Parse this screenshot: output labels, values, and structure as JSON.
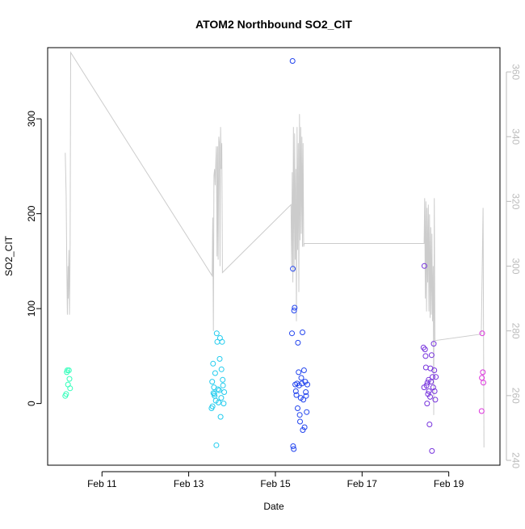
{
  "chart_data": {
    "type": "scatter",
    "title": "ATOM2 Northbound SO2_CIT",
    "xlabel": "Date",
    "ylabel": "SO2_CIT",
    "x_ticks": [
      {
        "date": "2017-02-11",
        "label": "Feb 11"
      },
      {
        "date": "2017-02-13",
        "label": "Feb 13"
      },
      {
        "date": "2017-02-15",
        "label": "Feb 15"
      },
      {
        "date": "2017-02-17",
        "label": "Feb 17"
      },
      {
        "date": "2017-02-19",
        "label": "Feb 19"
      }
    ],
    "xlim": [
      "2017-02-09 17:55",
      "2017-02-20 04:20"
    ],
    "ylim": [
      -65,
      375
    ],
    "y_ticks": [
      0,
      100,
      200,
      300
    ],
    "y2_ticks": [
      240,
      260,
      280,
      300,
      320,
      340,
      360
    ],
    "y2lim": [
      238.5,
      367.5
    ],
    "grid": false,
    "legend": "none",
    "colors": {
      "points_feb10": "#33ffbb",
      "points_feb13": "#22ccee",
      "points_feb15": "#2244ee",
      "points_feb18": "#7733dd",
      "points_feb19": "#dd33dd",
      "line": "#cccccc",
      "axis": "#000000",
      "secondary_axis": "#bbbbbb"
    },
    "series": [
      {
        "color": "#33ffbb",
        "points": [
          [
            "2017-02-10 03:40",
            8
          ],
          [
            "2017-02-10 04:10",
            10
          ],
          [
            "2017-02-10 04:30",
            33
          ],
          [
            "2017-02-10 05:10",
            20
          ],
          [
            "2017-02-10 05:40",
            35
          ],
          [
            "2017-02-10 06:00",
            26
          ],
          [
            "2017-02-10 06:20",
            16
          ],
          [
            "2017-02-10 04:50",
            35
          ]
        ]
      },
      {
        "color": "#22ccee",
        "points": [
          [
            "2017-02-13 12:40",
            -5
          ],
          [
            "2017-02-13 13:00",
            23
          ],
          [
            "2017-02-13 13:10",
            -3
          ],
          [
            "2017-02-13 13:30",
            42
          ],
          [
            "2017-02-13 13:40",
            11
          ],
          [
            "2017-02-13 14:00",
            17
          ],
          [
            "2017-02-13 14:20",
            8
          ],
          [
            "2017-02-13 14:40",
            32
          ],
          [
            "2017-02-13 15:00",
            3
          ],
          [
            "2017-02-13 15:20",
            -44
          ],
          [
            "2017-02-13 15:30",
            74
          ],
          [
            "2017-02-13 15:50",
            65
          ],
          [
            "2017-02-13 16:10",
            15
          ],
          [
            "2017-02-13 16:30",
            1
          ],
          [
            "2017-02-13 16:50",
            14
          ],
          [
            "2017-02-13 17:10",
            47
          ],
          [
            "2017-02-13 17:20",
            69
          ],
          [
            "2017-02-13 17:40",
            -14
          ],
          [
            "2017-02-13 18:00",
            6
          ],
          [
            "2017-02-13 18:10",
            36
          ],
          [
            "2017-02-13 18:30",
            65
          ],
          [
            "2017-02-13 18:50",
            25
          ],
          [
            "2017-02-13 19:00",
            19
          ],
          [
            "2017-02-13 19:20",
            0
          ],
          [
            "2017-02-13 19:40",
            12
          ],
          [
            "2017-02-13 14:10",
            10
          ]
        ]
      },
      {
        "color": "#2244ee",
        "points": [
          [
            "2017-02-15 09:10",
            74
          ],
          [
            "2017-02-15 09:30",
            361
          ],
          [
            "2017-02-15 09:40",
            142
          ],
          [
            "2017-02-15 09:50",
            -45
          ],
          [
            "2017-02-15 10:10",
            -48
          ],
          [
            "2017-02-15 10:20",
            98
          ],
          [
            "2017-02-15 10:40",
            101
          ],
          [
            "2017-02-15 11:00",
            20
          ],
          [
            "2017-02-15 11:20",
            13
          ],
          [
            "2017-02-15 11:40",
            9
          ],
          [
            "2017-02-15 12:00",
            21
          ],
          [
            "2017-02-15 12:20",
            -5
          ],
          [
            "2017-02-15 12:30",
            64
          ],
          [
            "2017-02-15 12:50",
            33
          ],
          [
            "2017-02-15 13:10",
            19
          ],
          [
            "2017-02-15 13:30",
            -12
          ],
          [
            "2017-02-15 13:40",
            -19
          ],
          [
            "2017-02-15 14:00",
            6
          ],
          [
            "2017-02-15 14:20",
            27
          ],
          [
            "2017-02-15 14:40",
            21
          ],
          [
            "2017-02-15 15:00",
            75
          ],
          [
            "2017-02-15 15:10",
            -28
          ],
          [
            "2017-02-15 15:30",
            4
          ],
          [
            "2017-02-15 15:50",
            35
          ],
          [
            "2017-02-15 16:10",
            -25
          ],
          [
            "2017-02-15 16:30",
            23
          ],
          [
            "2017-02-15 16:50",
            12
          ],
          [
            "2017-02-15 17:00",
            8
          ],
          [
            "2017-02-15 17:20",
            -9
          ],
          [
            "2017-02-15 17:40",
            20
          ]
        ]
      },
      {
        "color": "#7733dd",
        "points": [
          [
            "2017-02-18 10:00",
            59
          ],
          [
            "2017-02-18 10:20",
            17
          ],
          [
            "2017-02-18 10:30",
            145
          ],
          [
            "2017-02-18 10:50",
            57
          ],
          [
            "2017-02-18 11:10",
            50
          ],
          [
            "2017-02-18 11:20",
            38
          ],
          [
            "2017-02-18 11:40",
            19
          ],
          [
            "2017-02-18 12:00",
            0
          ],
          [
            "2017-02-18 12:10",
            22
          ],
          [
            "2017-02-18 12:30",
            10
          ],
          [
            "2017-02-18 12:50",
            25
          ],
          [
            "2017-02-18 13:00",
            13
          ],
          [
            "2017-02-18 13:20",
            -22
          ],
          [
            "2017-02-18 13:40",
            7
          ],
          [
            "2017-02-18 13:50",
            37
          ],
          [
            "2017-02-18 14:10",
            23
          ],
          [
            "2017-02-18 14:30",
            51
          ],
          [
            "2017-02-18 14:40",
            -50
          ],
          [
            "2017-02-18 15:00",
            28
          ],
          [
            "2017-02-18 15:20",
            17
          ],
          [
            "2017-02-18 15:40",
            63
          ],
          [
            "2017-02-18 16:00",
            35
          ],
          [
            "2017-02-18 16:10",
            13
          ],
          [
            "2017-02-18 16:30",
            4
          ],
          [
            "2017-02-18 16:50",
            28
          ]
        ]
      },
      {
        "color": "#dd33dd",
        "points": [
          [
            "2017-02-19 18:10",
            -8
          ],
          [
            "2017-02-19 18:20",
            27
          ],
          [
            "2017-02-19 18:30",
            74
          ],
          [
            "2017-02-19 18:50",
            33
          ],
          [
            "2017-02-19 19:10",
            22
          ]
        ]
      }
    ],
    "line_series": {
      "axis": "secondary",
      "points": [
        [
          "2017-02-10 03:40",
          335
        ],
        [
          "2017-02-10 04:10",
          322
        ],
        [
          "2017-02-10 04:30",
          300
        ],
        [
          "2017-02-10 04:50",
          285
        ],
        [
          "2017-02-10 05:10",
          300
        ],
        [
          "2017-02-10 05:20",
          290
        ],
        [
          "2017-02-10 05:40",
          305
        ],
        [
          "2017-02-10 06:00",
          285
        ],
        [
          "2017-02-10 06:20",
          305
        ],
        [
          "2017-02-10 06:40",
          366
        ],
        [
          "2017-02-13 13:00",
          297
        ],
        [
          "2017-02-13 13:20",
          315
        ],
        [
          "2017-02-13 13:40",
          280
        ],
        [
          "2017-02-13 14:00",
          328
        ],
        [
          "2017-02-13 14:20",
          330
        ],
        [
          "2017-02-13 14:40",
          325
        ],
        [
          "2017-02-13 15:00",
          332
        ],
        [
          "2017-02-13 15:20",
          337
        ],
        [
          "2017-02-13 15:40",
          303
        ],
        [
          "2017-02-13 16:00",
          337
        ],
        [
          "2017-02-13 16:20",
          302
        ],
        [
          "2017-02-13 16:40",
          340
        ],
        [
          "2017-02-13 17:00",
          338
        ],
        [
          "2017-02-13 17:20",
          300
        ],
        [
          "2017-02-13 17:40",
          343
        ],
        [
          "2017-02-13 18:00",
          330
        ],
        [
          "2017-02-13 18:20",
          338
        ],
        [
          "2017-02-13 18:40",
          298
        ],
        [
          "2017-02-15 08:40",
          319
        ],
        [
          "2017-02-15 09:00",
          300
        ],
        [
          "2017-02-15 09:20",
          329
        ],
        [
          "2017-02-15 09:40",
          295
        ],
        [
          "2017-02-15 10:00",
          343
        ],
        [
          "2017-02-15 10:20",
          298
        ],
        [
          "2017-02-15 10:40",
          341
        ],
        [
          "2017-02-15 11:00",
          302
        ],
        [
          "2017-02-15 11:20",
          330
        ],
        [
          "2017-02-15 11:40",
          283
        ],
        [
          "2017-02-15 12:00",
          343
        ],
        [
          "2017-02-15 12:20",
          305
        ],
        [
          "2017-02-15 12:40",
          338
        ],
        [
          "2017-02-15 13:00",
          292
        ],
        [
          "2017-02-15 13:20",
          347
        ],
        [
          "2017-02-15 13:40",
          308
        ],
        [
          "2017-02-15 14:00",
          343
        ],
        [
          "2017-02-15 14:20",
          310
        ],
        [
          "2017-02-15 14:40",
          340
        ],
        [
          "2017-02-15 15:00",
          306
        ],
        [
          "2017-02-15 15:20",
          338
        ],
        [
          "2017-02-15 15:40",
          306
        ],
        [
          "2017-02-15 16:00",
          307
        ],
        [
          "2017-02-18 10:20",
          307
        ],
        [
          "2017-02-18 10:40",
          321
        ],
        [
          "2017-02-18 11:00",
          290
        ],
        [
          "2017-02-18 11:20",
          320
        ],
        [
          "2017-02-18 11:40",
          286
        ],
        [
          "2017-02-18 12:00",
          318
        ],
        [
          "2017-02-18 12:20",
          295
        ],
        [
          "2017-02-18 12:40",
          319
        ],
        [
          "2017-02-18 13:00",
          286
        ],
        [
          "2017-02-18 13:20",
          316
        ],
        [
          "2017-02-18 13:40",
          284
        ],
        [
          "2017-02-18 14:00",
          312
        ],
        [
          "2017-02-18 14:20",
          285
        ],
        [
          "2017-02-18 14:40",
          310
        ],
        [
          "2017-02-18 15:00",
          283
        ],
        [
          "2017-02-18 15:20",
          300
        ],
        [
          "2017-02-18 15:40",
          254
        ],
        [
          "2017-02-18 16:00",
          321
        ],
        [
          "2017-02-18 16:20",
          277
        ],
        [
          "2017-02-19 18:00",
          279
        ],
        [
          "2017-02-19 19:00",
          318
        ],
        [
          "2017-02-19 19:30",
          244
        ]
      ]
    }
  }
}
